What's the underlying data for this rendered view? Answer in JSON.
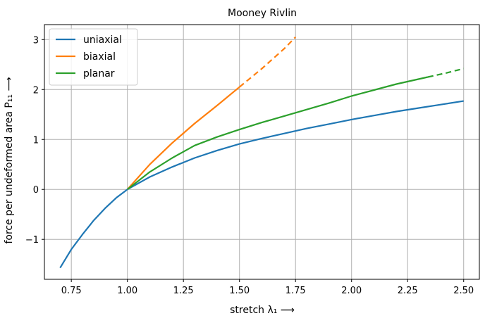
{
  "chart_data": {
    "type": "line",
    "title": "Mooney Rivlin",
    "xlabel": "stretch λ₁   ⟶",
    "ylabel": "force per undeformed area P₁₁   ⟶",
    "xlim": [
      0.63,
      2.57
    ],
    "ylim": [
      -1.8,
      3.3
    ],
    "xticks": [
      0.75,
      1.0,
      1.25,
      1.5,
      1.75,
      2.0,
      2.25,
      2.5
    ],
    "xtick_labels": [
      "0.75",
      "1.00",
      "1.25",
      "1.50",
      "1.75",
      "2.00",
      "2.25",
      "2.50"
    ],
    "yticks": [
      -1,
      0,
      1,
      2,
      3
    ],
    "ytick_labels": [
      "−1",
      "0",
      "1",
      "2",
      "3"
    ],
    "grid": true,
    "legend_position": "top-left",
    "series": [
      {
        "name": "uniaxial",
        "color": "#1f77b4",
        "solid": {
          "x": [
            0.7,
            0.75,
            0.8,
            0.85,
            0.9,
            0.95,
            1.0,
            1.1,
            1.2,
            1.3,
            1.4,
            1.5,
            1.6,
            1.7,
            1.8,
            1.9,
            2.0,
            2.1,
            2.2,
            2.3,
            2.4,
            2.5
          ],
          "y": [
            -1.57,
            -1.2,
            -0.9,
            -0.62,
            -0.38,
            -0.17,
            0.0,
            0.25,
            0.45,
            0.63,
            0.78,
            0.91,
            1.02,
            1.12,
            1.22,
            1.31,
            1.4,
            1.48,
            1.56,
            1.63,
            1.7,
            1.77
          ]
        },
        "dashed": {
          "x": [],
          "y": []
        }
      },
      {
        "name": "biaxial",
        "color": "#ff7f0e",
        "solid": {
          "x": [
            1.0,
            1.1,
            1.2,
            1.3,
            1.4,
            1.5
          ],
          "y": [
            0.0,
            0.5,
            0.93,
            1.32,
            1.68,
            2.05
          ]
        },
        "dashed": {
          "x": [
            1.5,
            1.6,
            1.7,
            1.75
          ],
          "y": [
            2.05,
            2.42,
            2.82,
            3.05
          ]
        }
      },
      {
        "name": "planar",
        "color": "#2ca02c",
        "solid": {
          "x": [
            1.0,
            1.1,
            1.2,
            1.3,
            1.4,
            1.5,
            1.6,
            1.7,
            1.8,
            1.9,
            2.0,
            2.1,
            2.2,
            2.34
          ],
          "y": [
            0.0,
            0.35,
            0.63,
            0.88,
            1.05,
            1.2,
            1.34,
            1.47,
            1.6,
            1.73,
            1.87,
            1.99,
            2.11,
            2.25
          ]
        },
        "dashed": {
          "x": [
            2.34,
            2.42,
            2.5
          ],
          "y": [
            2.25,
            2.33,
            2.42
          ]
        }
      }
    ]
  }
}
